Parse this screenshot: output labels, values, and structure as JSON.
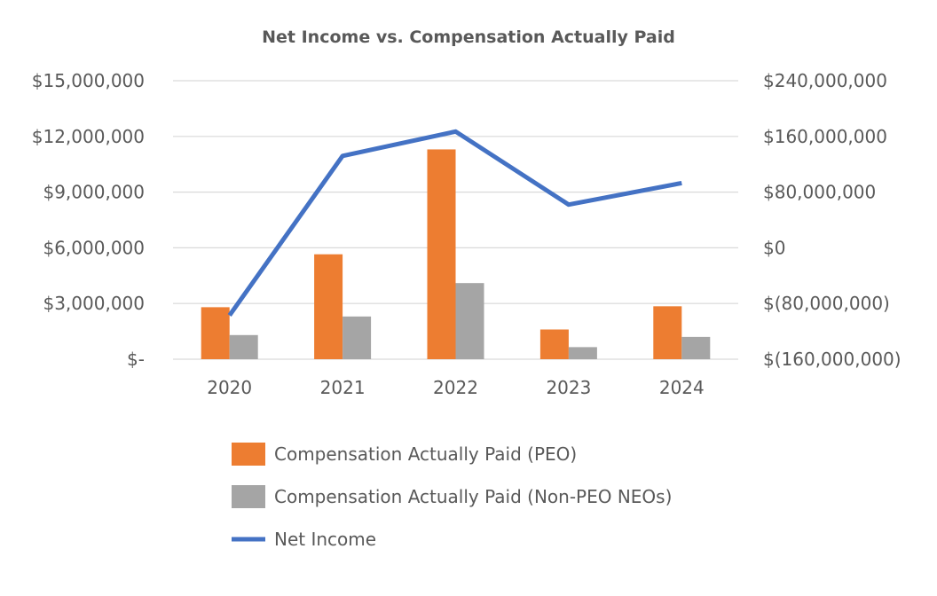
{
  "chart_data": {
    "type": "bar",
    "title": "Net Income vs. Compensation Actually Paid",
    "categories": [
      "2020",
      "2021",
      "2022",
      "2023",
      "2024"
    ],
    "xlabel": "",
    "ylabel_left": "",
    "ylabel_right": "",
    "y_left": {
      "min": 0,
      "max": 15000000,
      "ticks": [
        0,
        3000000,
        6000000,
        9000000,
        12000000,
        15000000
      ],
      "tick_labels": [
        "$-",
        "$3,000,000",
        "$6,000,000",
        "$9,000,000",
        "$12,000,000",
        "$15,000,000"
      ]
    },
    "y_right": {
      "min": -160000000,
      "max": 240000000,
      "ticks": [
        -160000000,
        -80000000,
        0,
        80000000,
        160000000,
        240000000
      ],
      "tick_labels": [
        "$(160,000,000)",
        "$(80,000,000)",
        "$0",
        "$80,000,000",
        "$160,000,000",
        "$240,000,000"
      ]
    },
    "grid": true,
    "legend_position": "bottom",
    "series": [
      {
        "name": "Compensation Actually Paid (PEO)",
        "kind": "bar",
        "axis": "left",
        "color": "#ed7d31",
        "values": [
          2800000,
          5650000,
          11300000,
          1600000,
          2850000
        ]
      },
      {
        "name": "Compensation Actually Paid (Non-PEO NEOs)",
        "kind": "bar",
        "axis": "left",
        "color": "#a5a5a5",
        "values": [
          1300000,
          2300000,
          4100000,
          650000,
          1200000
        ]
      },
      {
        "name": "Net Income",
        "kind": "line",
        "axis": "right",
        "color": "#4472c4",
        "values": [
          -97000000,
          132000000,
          167000000,
          62000000,
          93000000
        ]
      }
    ]
  }
}
